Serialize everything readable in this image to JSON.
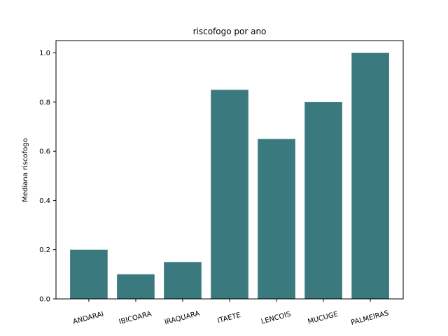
{
  "chart_data": {
    "type": "bar",
    "title": "riscofogo por ano",
    "xlabel": "",
    "ylabel": "Mediana riscofogo",
    "categories": [
      "ANDARAI",
      "IBICOARA",
      "IRAQUARA",
      "ITAETE",
      "LENCOIS",
      "MUCUGE",
      "PALMEIRAS"
    ],
    "values": [
      0.2,
      0.1,
      0.15,
      0.85,
      0.65,
      0.8,
      1.0
    ],
    "ylim": [
      0,
      1.05
    ],
    "yticks": [
      "0.0",
      "0.2",
      "0.4",
      "0.6",
      "0.8",
      "1.0"
    ],
    "bar_color": "#3a7a7e",
    "grid": false,
    "legend": "none"
  }
}
